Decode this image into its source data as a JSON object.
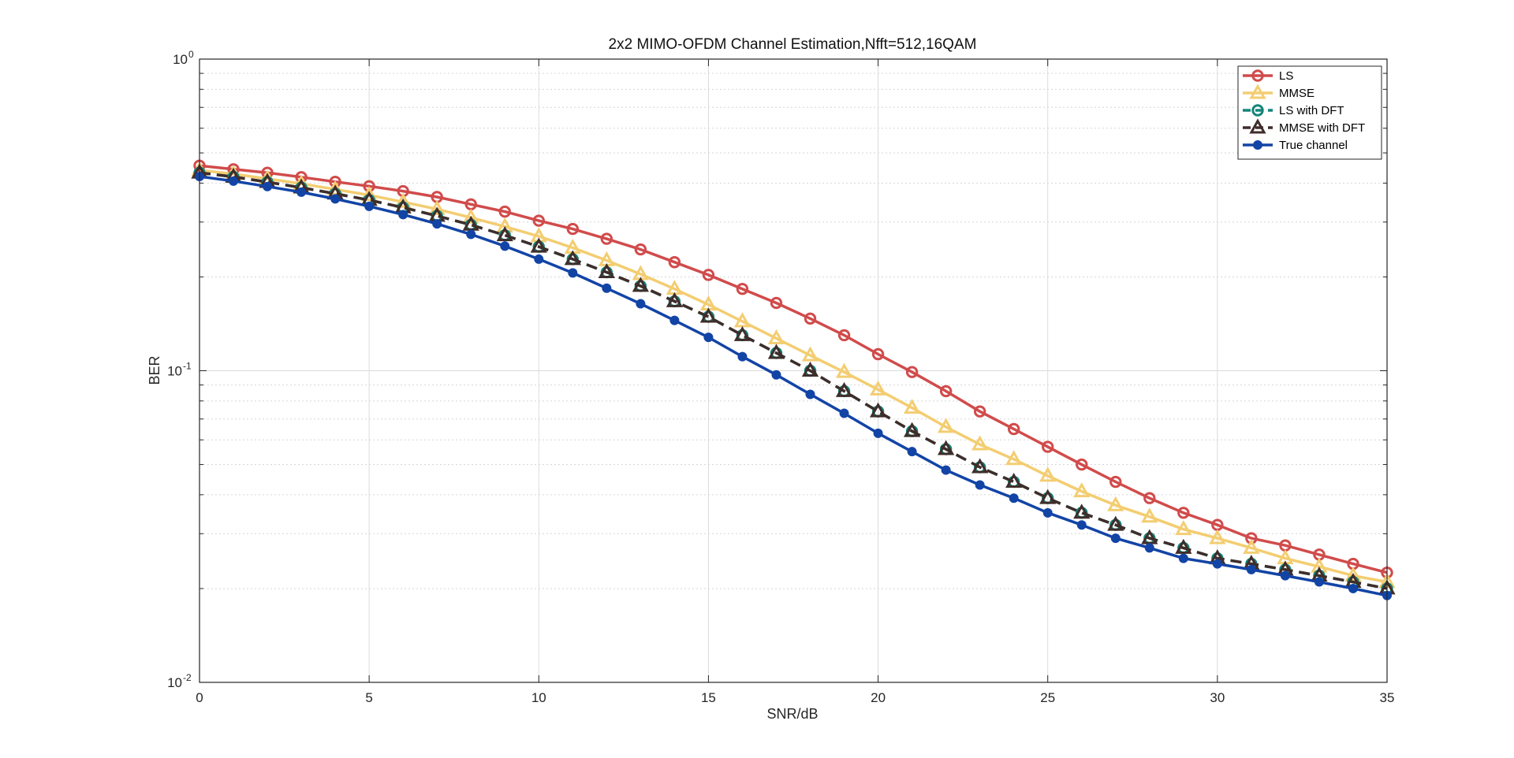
{
  "chart_data": {
    "type": "line",
    "title": "2x2 MIMO-OFDM Channel Estimation,Nfft=512,16QAM",
    "xlabel": "SNR/dB",
    "ylabel": "BER",
    "xlim": [
      0,
      35
    ],
    "ylim": [
      0.01,
      1
    ],
    "yscale": "log",
    "grid": true,
    "minor_grid": true,
    "legend_position": "top-right",
    "x_ticks": [
      "0",
      "5",
      "10",
      "15",
      "20",
      "25",
      "30",
      "35"
    ],
    "y_ticks": [
      {
        "base": "10",
        "exp": "0"
      },
      {
        "base": "10",
        "exp": "-1"
      },
      {
        "base": "10",
        "exp": "-2"
      }
    ],
    "x": [
      0,
      1,
      2,
      3,
      4,
      5,
      6,
      7,
      8,
      9,
      10,
      11,
      12,
      13,
      14,
      15,
      16,
      17,
      18,
      19,
      20,
      21,
      22,
      23,
      24,
      25,
      26,
      27,
      28,
      29,
      30,
      31,
      32,
      33,
      34,
      35
    ],
    "series": [
      {
        "name": "LS",
        "color": "#d14b4b",
        "marker": "circle-open",
        "line_style": "solid",
        "values": [
          0.455,
          0.443,
          0.432,
          0.418,
          0.404,
          0.391,
          0.377,
          0.361,
          0.342,
          0.324,
          0.303,
          0.285,
          0.265,
          0.245,
          0.223,
          0.203,
          0.183,
          0.165,
          0.147,
          0.13,
          0.113,
          0.099,
          0.086,
          0.074,
          0.065,
          0.057,
          0.05,
          0.044,
          0.039,
          0.035,
          0.032,
          0.029,
          0.0275,
          0.0257,
          0.024,
          0.0225
        ]
      },
      {
        "name": "MMSE",
        "color": "#f3cd71",
        "marker": "triangle-open",
        "line_style": "solid",
        "values": [
          0.44,
          0.428,
          0.413,
          0.398,
          0.382,
          0.366,
          0.348,
          0.33,
          0.31,
          0.29,
          0.27,
          0.248,
          0.226,
          0.204,
          0.183,
          0.163,
          0.144,
          0.127,
          0.112,
          0.099,
          0.087,
          0.076,
          0.066,
          0.058,
          0.052,
          0.046,
          0.041,
          0.037,
          0.034,
          0.031,
          0.029,
          0.027,
          0.025,
          0.0235,
          0.022,
          0.021
        ]
      },
      {
        "name": "LS with DFT",
        "color": "#14857a",
        "marker": "circle-open",
        "line_style": "dashed",
        "values": [
          0.432,
          0.419,
          0.403,
          0.387,
          0.37,
          0.353,
          0.334,
          0.314,
          0.294,
          0.272,
          0.25,
          0.228,
          0.207,
          0.187,
          0.167,
          0.149,
          0.13,
          0.114,
          0.1,
          0.086,
          0.074,
          0.064,
          0.056,
          0.049,
          0.044,
          0.039,
          0.035,
          0.032,
          0.029,
          0.027,
          0.025,
          0.024,
          0.023,
          0.022,
          0.021,
          0.02
        ]
      },
      {
        "name": "MMSE with DFT",
        "color": "#3f2d2a",
        "marker": "triangle-open",
        "line_style": "dashed",
        "values": [
          0.432,
          0.419,
          0.403,
          0.387,
          0.37,
          0.353,
          0.334,
          0.314,
          0.294,
          0.272,
          0.25,
          0.228,
          0.207,
          0.187,
          0.167,
          0.149,
          0.13,
          0.114,
          0.1,
          0.086,
          0.074,
          0.064,
          0.056,
          0.049,
          0.044,
          0.039,
          0.035,
          0.032,
          0.029,
          0.027,
          0.025,
          0.024,
          0.023,
          0.022,
          0.021,
          0.02
        ]
      },
      {
        "name": "True channel",
        "color": "#1244a6",
        "marker": "circle-filled",
        "line_style": "solid",
        "values": [
          0.42,
          0.406,
          0.39,
          0.374,
          0.356,
          0.337,
          0.317,
          0.296,
          0.274,
          0.251,
          0.228,
          0.206,
          0.184,
          0.164,
          0.145,
          0.128,
          0.111,
          0.097,
          0.084,
          0.073,
          0.063,
          0.055,
          0.048,
          0.043,
          0.039,
          0.035,
          0.032,
          0.029,
          0.027,
          0.025,
          0.024,
          0.023,
          0.022,
          0.021,
          0.02,
          0.019
        ]
      }
    ]
  }
}
